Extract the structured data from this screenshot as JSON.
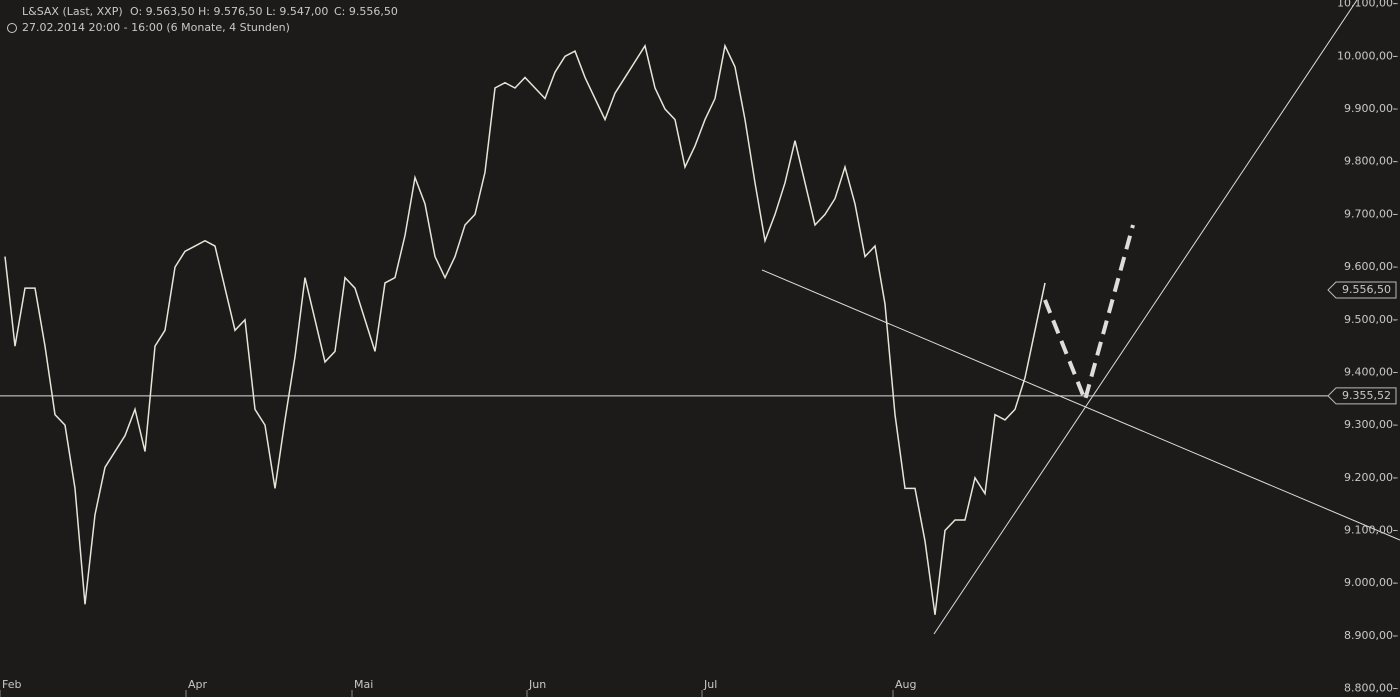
{
  "header": {
    "symbol": "L&SAX (Last, XXP)",
    "ohlc": [
      "O: 9.563,50",
      "H: 9.576,50",
      "L: 9.547,00",
      "C: 9.556,50"
    ],
    "period": "27.02.2014 20:00 - 16:00 (6 Monate, 4 Stunden)"
  },
  "chart_data": {
    "type": "line",
    "color": "#e8e4d8",
    "x": [
      0,
      1,
      2,
      3,
      4,
      5,
      6,
      7,
      8,
      9,
      10,
      11,
      12,
      13,
      14,
      15,
      16,
      17,
      18,
      19,
      20,
      21,
      22,
      23,
      24,
      25,
      26,
      27,
      28,
      29,
      30,
      31,
      32,
      33,
      34,
      35,
      36,
      37,
      38,
      39,
      40,
      41,
      42,
      43,
      44,
      45,
      46,
      47,
      48,
      49,
      50,
      51,
      52,
      53,
      54,
      55,
      56,
      57,
      58,
      59,
      60,
      61,
      62,
      63,
      64,
      65,
      66,
      67,
      68,
      69,
      70,
      71,
      72,
      73,
      74,
      75,
      76,
      77,
      78,
      79,
      80,
      81,
      82,
      83,
      84,
      85,
      86,
      87,
      88,
      89,
      90,
      91,
      92,
      93,
      94,
      95,
      96,
      97,
      98,
      99,
      100,
      101,
      102,
      103,
      104
    ],
    "values": [
      9620,
      9450,
      9560,
      9560,
      9450,
      9320,
      9300,
      9180,
      8960,
      9130,
      9220,
      9250,
      9280,
      9330,
      9250,
      9450,
      9480,
      9600,
      9630,
      9640,
      9650,
      9640,
      9560,
      9480,
      9500,
      9330,
      9300,
      9180,
      9310,
      9430,
      9580,
      9500,
      9420,
      9440,
      9580,
      9560,
      9500,
      9440,
      9570,
      9580,
      9660,
      9770,
      9720,
      9620,
      9580,
      9620,
      9680,
      9700,
      9780,
      9940,
      9950,
      9940,
      9960,
      9940,
      9920,
      9970,
      10000,
      10010,
      9960,
      9920,
      9880,
      9930,
      9960,
      9990,
      10020,
      9940,
      9900,
      9880,
      9790,
      9830,
      9880,
      9920,
      10020,
      9980,
      9880,
      9760,
      9650,
      9700,
      9760,
      9840,
      9760,
      9680,
      9700,
      9730,
      9790,
      9720,
      9620,
      9640,
      9530,
      9320,
      9180,
      9180,
      9080,
      8940,
      9100,
      9120,
      9120,
      9200,
      9170,
      9320,
      9310,
      9330,
      9390,
      9480,
      9570
    ],
    "xlim": [
      -0.5,
      132.5
    ],
    "xticks": [
      {
        "value": -0.5,
        "label": "Feb"
      },
      {
        "value": 18.1,
        "label": "Apr"
      },
      {
        "value": 34.7,
        "label": "Mai"
      },
      {
        "value": 52.2,
        "label": "Jun"
      },
      {
        "value": 69.7,
        "label": "Jul"
      },
      {
        "value": 88.8,
        "label": "Aug"
      }
    ],
    "ylim": [
      8784,
      10107
    ],
    "yticks": [
      {
        "value": 8800,
        "label": "8.800,00-"
      },
      {
        "value": 8900,
        "label": "8.900,00-"
      },
      {
        "value": 9000,
        "label": "9.000,00-"
      },
      {
        "value": 9100,
        "label": "9.100,00-"
      },
      {
        "value": 9200,
        "label": "9.200,00-"
      },
      {
        "value": 9300,
        "label": "9.300,00-"
      },
      {
        "value": 9400,
        "label": "9.400,00-"
      },
      {
        "value": 9500,
        "label": "9.500,00-"
      },
      {
        "value": 9600,
        "label": "9.600,00-"
      },
      {
        "value": 9700,
        "label": "9.700,00-"
      },
      {
        "value": 9800,
        "label": "9.800,00-"
      },
      {
        "value": 9900,
        "label": "9.900,00-"
      },
      {
        "value": 10000,
        "label": "10.000,00-"
      },
      {
        "value": 10100,
        "label": "10.100,00-"
      }
    ],
    "hline": {
      "value": 9355.52,
      "label": "9.355,52"
    },
    "last_price": {
      "value": 9556.5,
      "label": "9.556,50"
    }
  }
}
